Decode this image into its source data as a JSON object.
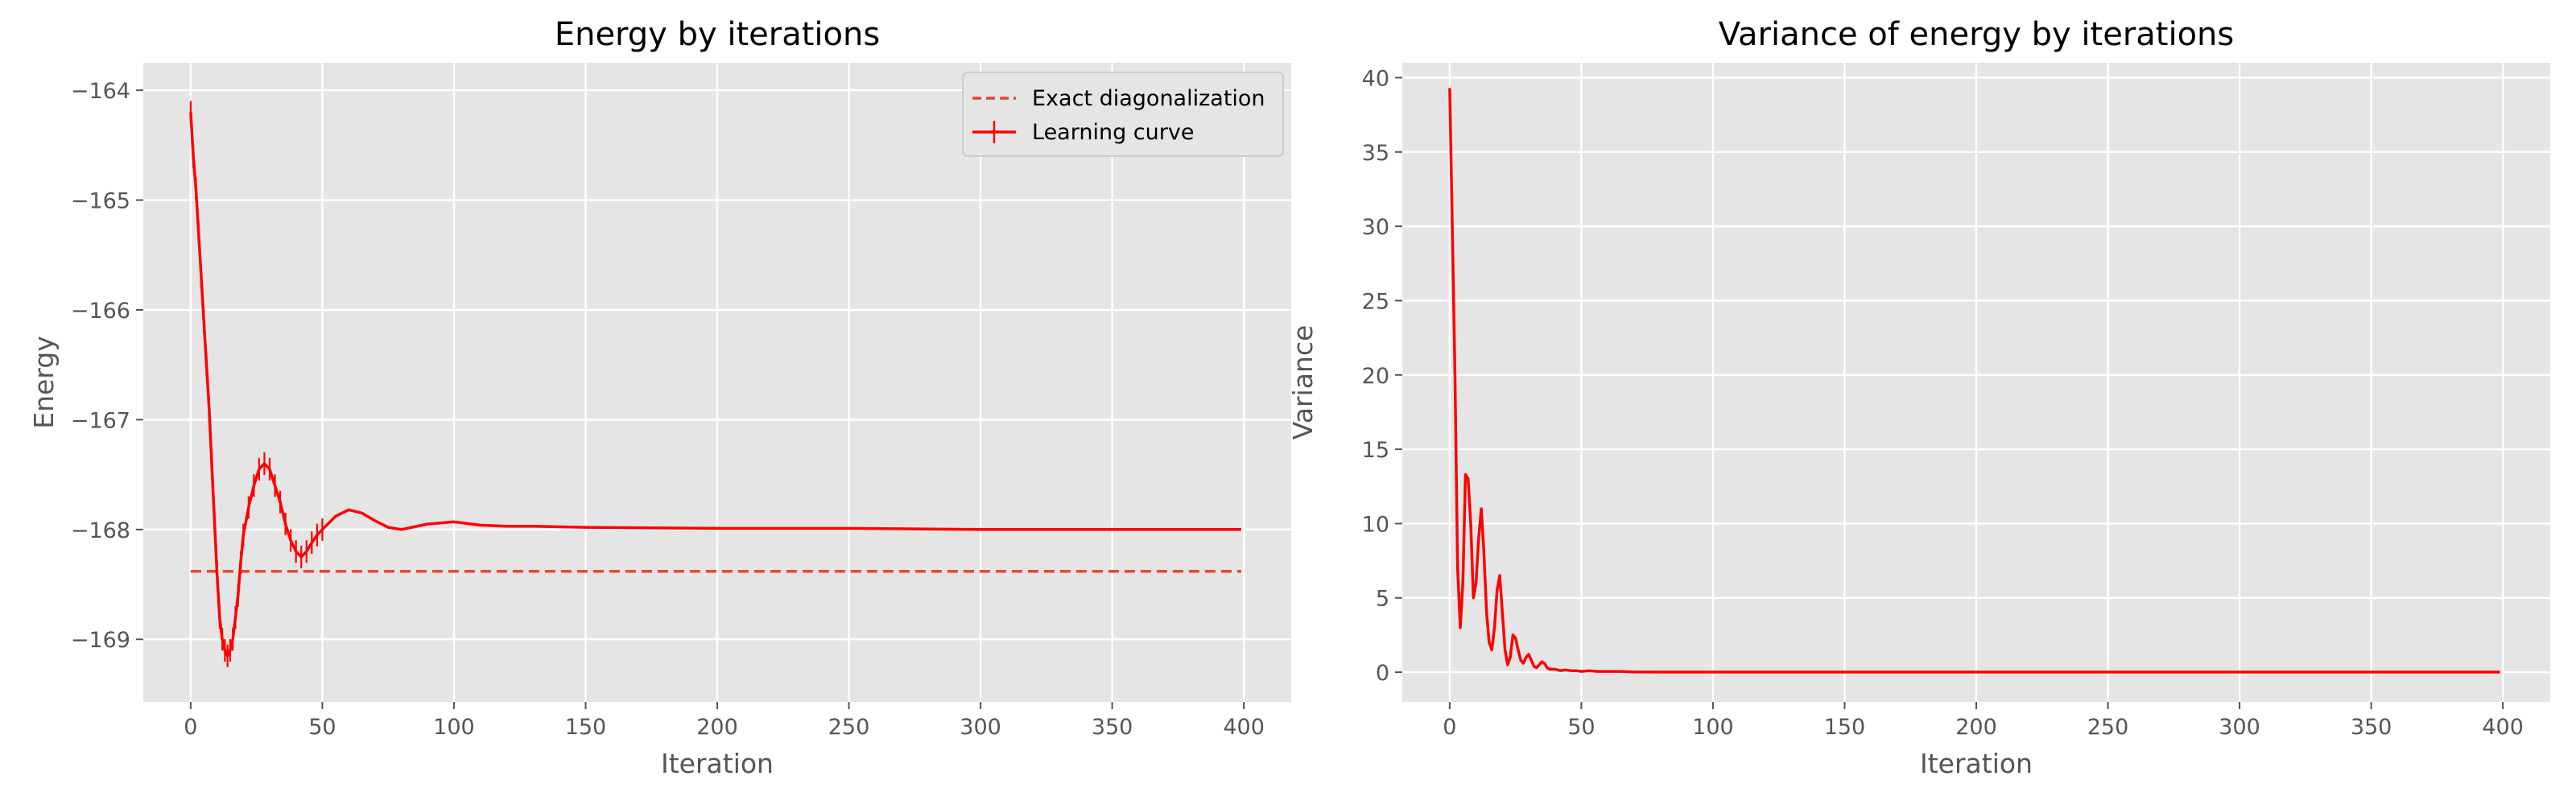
{
  "figure": {
    "accent_color": "#ff0000",
    "reference_color": "#e24a33",
    "background": "#e5e5e5"
  },
  "chart_data": [
    {
      "type": "line",
      "title": "Energy by iterations",
      "xlabel": "Iteration",
      "ylabel": "Energy",
      "xlim": [
        -18,
        418
      ],
      "ylim": [
        -169.57,
        -163.75
      ],
      "xticks": [
        0,
        50,
        100,
        150,
        200,
        250,
        300,
        350,
        400
      ],
      "yticks": [
        -169,
        -168,
        -167,
        -166,
        -165,
        -164
      ],
      "ytick_labels": [
        "−169",
        "−168",
        "−167",
        "−166",
        "−165",
        "−164"
      ],
      "grid": true,
      "legend": {
        "placement": "top-right",
        "entries": [
          "Exact diagonalization",
          "Learning curve"
        ]
      },
      "series": [
        {
          "name": "Exact diagonalization",
          "style": "dashed",
          "color": "#e24a33",
          "x": [
            0,
            399
          ],
          "y": [
            -168.38,
            -168.38
          ]
        },
        {
          "name": "Learning curve",
          "style": "solid",
          "color": "#ff0000",
          "errorbars": true,
          "x": [
            0,
            1,
            2,
            3,
            4,
            5,
            6,
            7,
            8,
            9,
            10,
            11,
            12,
            13,
            14,
            15,
            16,
            17,
            18,
            19,
            20,
            22,
            24,
            26,
            28,
            30,
            32,
            34,
            36,
            38,
            40,
            42,
            44,
            46,
            48,
            50,
            55,
            60,
            65,
            70,
            75,
            80,
            90,
            100,
            110,
            120,
            130,
            150,
            200,
            250,
            300,
            350,
            399
          ],
          "y": [
            -164.2,
            -164.6,
            -164.9,
            -165.3,
            -165.7,
            -166.1,
            -166.5,
            -166.9,
            -167.4,
            -167.9,
            -168.4,
            -168.8,
            -169.0,
            -169.1,
            -169.15,
            -169.1,
            -169.0,
            -168.8,
            -168.6,
            -168.3,
            -168.05,
            -167.8,
            -167.6,
            -167.45,
            -167.4,
            -167.45,
            -167.6,
            -167.75,
            -167.95,
            -168.1,
            -168.2,
            -168.25,
            -168.2,
            -168.12,
            -168.05,
            -168.0,
            -167.88,
            -167.82,
            -167.85,
            -167.92,
            -167.98,
            -168.0,
            -167.95,
            -167.93,
            -167.96,
            -167.97,
            -167.97,
            -167.98,
            -167.99,
            -167.99,
            -168.0,
            -168.0,
            -168.0
          ]
        }
      ]
    },
    {
      "type": "line",
      "title": "Variance of energy by iterations",
      "xlabel": "Iteration",
      "ylabel": "Variance",
      "xlim": [
        -18,
        418
      ],
      "ylim": [
        -2.0,
        41.0
      ],
      "xticks": [
        0,
        50,
        100,
        150,
        200,
        250,
        300,
        350,
        400
      ],
      "yticks": [
        0,
        5,
        10,
        15,
        20,
        25,
        30,
        35,
        40
      ],
      "grid": true,
      "series": [
        {
          "style": "solid",
          "color": "#ff0000",
          "x": [
            0,
            1,
            2,
            3,
            4,
            5,
            6,
            7,
            8,
            9,
            10,
            11,
            12,
            13,
            14,
            15,
            16,
            17,
            18,
            19,
            20,
            21,
            22,
            23,
            24,
            25,
            26,
            27,
            28,
            29,
            30,
            31,
            32,
            33,
            34,
            35,
            36,
            37,
            38,
            40,
            42,
            44,
            46,
            48,
            50,
            53,
            56,
            60,
            65,
            70,
            80,
            100,
            150,
            200,
            250,
            300,
            350,
            399
          ],
          "y": [
            39.3,
            30.0,
            20.0,
            7.0,
            3.0,
            6.0,
            13.3,
            13.0,
            10.0,
            5.0,
            6.0,
            9.0,
            11.0,
            8.0,
            4.0,
            2.0,
            1.5,
            3.0,
            5.5,
            6.5,
            4.0,
            1.5,
            0.5,
            1.0,
            2.5,
            2.3,
            1.5,
            0.8,
            0.6,
            1.0,
            1.2,
            0.8,
            0.4,
            0.3,
            0.5,
            0.7,
            0.6,
            0.3,
            0.2,
            0.2,
            0.1,
            0.15,
            0.1,
            0.1,
            0.05,
            0.1,
            0.05,
            0.05,
            0.05,
            0.02,
            0.01,
            0.01,
            0.01,
            0.01,
            0.01,
            0.01,
            0.01,
            0.01
          ]
        }
      ]
    }
  ]
}
